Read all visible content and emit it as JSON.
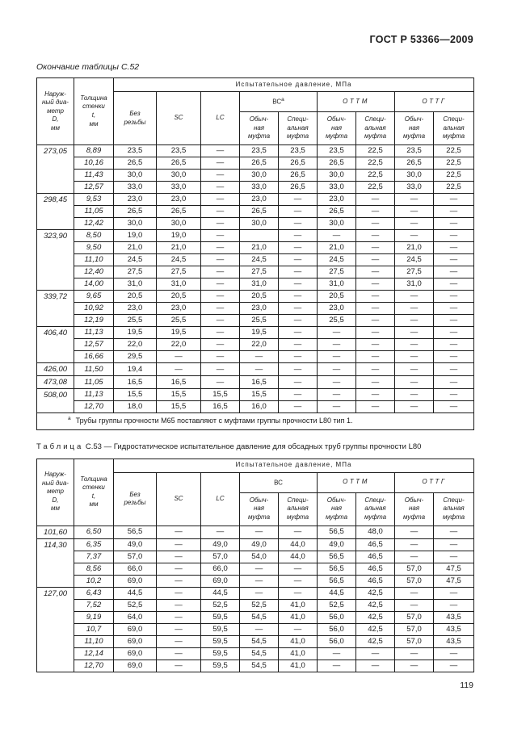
{
  "page": {
    "standard": "ГОСТ Р 53366—2009",
    "number": "119"
  },
  "columns": {
    "diameter": "Наруж-\nный диа-\nметр\nD,\nмм",
    "thickness": "Толщина\nстенки\nt,\nмм",
    "pressure": "Испытательное давление, МПа",
    "plain_end": "Без\nрезьбы",
    "sc": "SC",
    "lc": "LC",
    "bc": "ВС",
    "ottm": "ОТТМ",
    "ottg": "ОТТГ",
    "coupling_regular": "Обыч-\nная\nмуфта",
    "coupling_special": "Специ-\nальная\nмуфта"
  },
  "table1": {
    "continuation_label": "Окончание таблицы С.52",
    "bc_superscript": "а",
    "footnote_marker": "а",
    "footnote_text": "Трубы группы прочности М65 поставляют с муфтами группы прочности L80 тип 1.",
    "groups": [
      {
        "diameter": "273,05",
        "rows": [
          [
            "8,89",
            "23,5",
            "23,5",
            "—",
            "23,5",
            "23,5",
            "23,5",
            "22,5",
            "23,5",
            "22,5"
          ],
          [
            "10,16",
            "26,5",
            "26,5",
            "—",
            "26,5",
            "26,5",
            "26,5",
            "22,5",
            "26,5",
            "22,5"
          ],
          [
            "11,43",
            "30,0",
            "30,0",
            "—",
            "30,0",
            "26,5",
            "30,0",
            "22,5",
            "30,0",
            "22,5"
          ],
          [
            "12,57",
            "33,0",
            "33,0",
            "—",
            "33,0",
            "26,5",
            "33,0",
            "22,5",
            "33,0",
            "22,5"
          ]
        ]
      },
      {
        "diameter": "298,45",
        "rows": [
          [
            "9,53",
            "23,0",
            "23,0",
            "—",
            "23,0",
            "—",
            "23,0",
            "—",
            "—",
            "—"
          ],
          [
            "11,05",
            "26,5",
            "26,5",
            "—",
            "26,5",
            "—",
            "26,5",
            "—",
            "—",
            "—"
          ],
          [
            "12,42",
            "30,0",
            "30,0",
            "—",
            "30,0",
            "—",
            "30,0",
            "—",
            "—",
            "—"
          ]
        ]
      },
      {
        "diameter": "323,90",
        "rows": [
          [
            "8,50",
            "19,0",
            "19,0",
            "—",
            "",
            "—",
            "—",
            "—",
            "—",
            "—"
          ],
          [
            "9,50",
            "21,0",
            "21,0",
            "—",
            "21,0",
            "—",
            "21,0",
            "—",
            "21,0",
            "—"
          ],
          [
            "11,10",
            "24,5",
            "24,5",
            "—",
            "24,5",
            "—",
            "24,5",
            "—",
            "24,5",
            "—"
          ],
          [
            "12,40",
            "27,5",
            "27,5",
            "—",
            "27,5",
            "—",
            "27,5",
            "—",
            "27,5",
            "—"
          ],
          [
            "14,00",
            "31,0",
            "31,0",
            "—",
            "31,0",
            "—",
            "31,0",
            "—",
            "31,0",
            "—"
          ]
        ]
      },
      {
        "diameter": "339,72",
        "rows": [
          [
            "9,65",
            "20,5",
            "20,5",
            "—",
            "20,5",
            "—",
            "20,5",
            "—",
            "—",
            "—"
          ],
          [
            "10,92",
            "23,0",
            "23,0",
            "—",
            "23,0",
            "—",
            "23,0",
            "—",
            "—",
            "—"
          ],
          [
            "12,19",
            "25,5",
            "25,5",
            "—",
            "25,5",
            "—",
            "25,5",
            "—",
            "—",
            "—"
          ]
        ]
      },
      {
        "diameter": "406,40",
        "rows": [
          [
            "11,13",
            "19,5",
            "19,5",
            "—",
            "19,5",
            "—",
            "—",
            "—",
            "—",
            "—"
          ],
          [
            "12,57",
            "22,0",
            "22,0",
            "—",
            "22,0",
            "—",
            "—",
            "—",
            "—",
            "—"
          ],
          [
            "16,66",
            "29,5",
            "—",
            "—",
            "—",
            "—",
            "—",
            "—",
            "—",
            "—"
          ]
        ]
      },
      {
        "diameter": "426,00",
        "rows": [
          [
            "11,50",
            "19,4",
            "—",
            "—",
            "—",
            "—",
            "—",
            "—",
            "—",
            "—"
          ]
        ]
      },
      {
        "diameter": "473,08",
        "rows": [
          [
            "11,05",
            "16,5",
            "16,5",
            "—",
            "16,5",
            "—",
            "—",
            "—",
            "—",
            "—"
          ]
        ]
      },
      {
        "diameter": "508,00",
        "rows": [
          [
            "11,13",
            "15,5",
            "15,5",
            "15,5",
            "15,5",
            "—",
            "—",
            "—",
            "—",
            "—"
          ],
          [
            "12,70",
            "18,0",
            "15,5",
            "16,5",
            "16,0",
            "—",
            "—",
            "—",
            "—",
            "—"
          ]
        ]
      }
    ]
  },
  "table2": {
    "title_word": "Таблица",
    "title_text": "С.53 — Гидростатическое испытательное давление для обсадных труб группы прочности L80",
    "bc_superscript": "",
    "groups": [
      {
        "diameter": "101,60",
        "rows": [
          [
            "6,50",
            "56,5",
            "—",
            "—",
            "—",
            "—",
            "56,5",
            "48,0",
            "—",
            "—"
          ]
        ]
      },
      {
        "diameter": "114,30",
        "rows": [
          [
            "6,35",
            "49,0",
            "—",
            "49,0",
            "49,0",
            "44,0",
            "49,0",
            "46,5",
            "—",
            "—"
          ],
          [
            "7,37",
            "57,0",
            "—",
            "57,0",
            "54,0",
            "44,0",
            "56,5",
            "46,5",
            "—",
            "—"
          ],
          [
            "8,56",
            "66,0",
            "—",
            "66,0",
            "—",
            "—",
            "56,5",
            "46,5",
            "57,0",
            "47,5"
          ],
          [
            "10,2",
            "69,0",
            "—",
            "69,0",
            "—",
            "—",
            "56,5",
            "46,5",
            "57,0",
            "47,5"
          ]
        ]
      },
      {
        "diameter": "127,00",
        "rows": [
          [
            "6,43",
            "44,5",
            "—",
            "44,5",
            "—",
            "—",
            "44,5",
            "42,5",
            "—",
            "—"
          ],
          [
            "7,52",
            "52,5",
            "—",
            "52,5",
            "52,5",
            "41,0",
            "52,5",
            "42,5",
            "—",
            "—"
          ],
          [
            "9,19",
            "64,0",
            "—",
            "59,5",
            "54,5",
            "41,0",
            "56,0",
            "42,5",
            "57,0",
            "43,5"
          ],
          [
            "10,7",
            "69,0",
            "—",
            "59,5",
            "—",
            "—",
            "56,0",
            "42,5",
            "57,0",
            "43,5"
          ],
          [
            "11,10",
            "69,0",
            "—",
            "59,5",
            "54,5",
            "41,0",
            "56,0",
            "42,5",
            "57,0",
            "43,5"
          ],
          [
            "12,14",
            "69,0",
            "—",
            "59,5",
            "54,5",
            "41,0",
            "—",
            "—",
            "—",
            "—"
          ],
          [
            "12,70",
            "69,0",
            "—",
            "59,5",
            "54,5",
            "41,0",
            "—",
            "—",
            "—",
            "—"
          ]
        ]
      }
    ]
  }
}
